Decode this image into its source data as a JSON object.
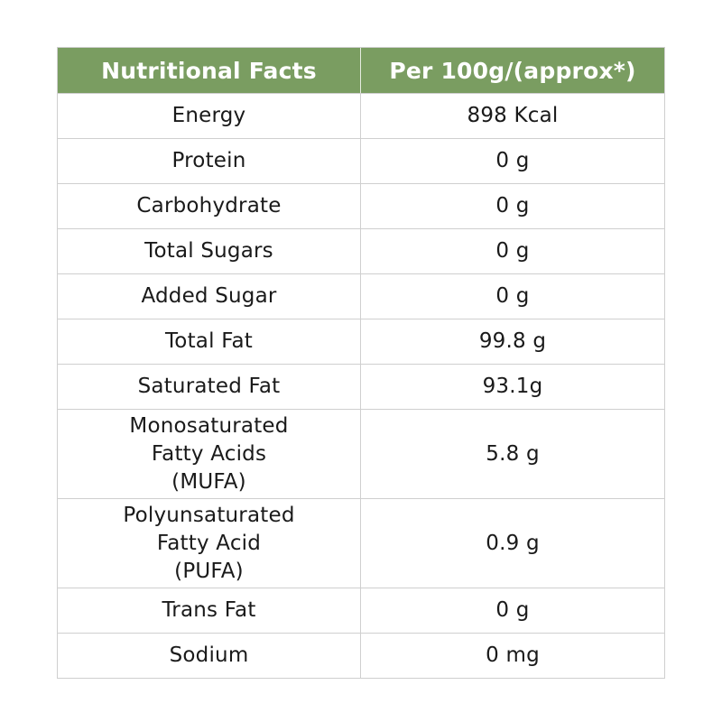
{
  "header": {
    "col1": "Nutritional Facts",
    "col2": "Per 100g/(approx*)"
  },
  "rows": [
    {
      "name": "Energy",
      "value": "898 Kcal"
    },
    {
      "name": "Protein",
      "value": "0 g"
    },
    {
      "name": "Carbohydrate",
      "value": "0 g"
    },
    {
      "name": "Total Sugars",
      "value": "0 g"
    },
    {
      "name": "Added Sugar",
      "value": "0 g"
    },
    {
      "name": "Total Fat",
      "value": "99.8 g"
    },
    {
      "name": "Saturated Fat",
      "value": "93.1g"
    },
    {
      "name": "Monosaturated\nFatty Acids\n(MUFA)",
      "value": "5.8 g"
    },
    {
      "name": "Polyunsaturated\nFatty Acid\n(PUFA)",
      "value": "0.9 g"
    },
    {
      "name": "Trans Fat",
      "value": "0 g"
    },
    {
      "name": "Sodium",
      "value": "0 mg"
    }
  ],
  "colors": {
    "header_bg": "#7a9d61",
    "header_text": "#ffffff",
    "border": "#cfcfcf",
    "text": "#1a1a1a"
  }
}
